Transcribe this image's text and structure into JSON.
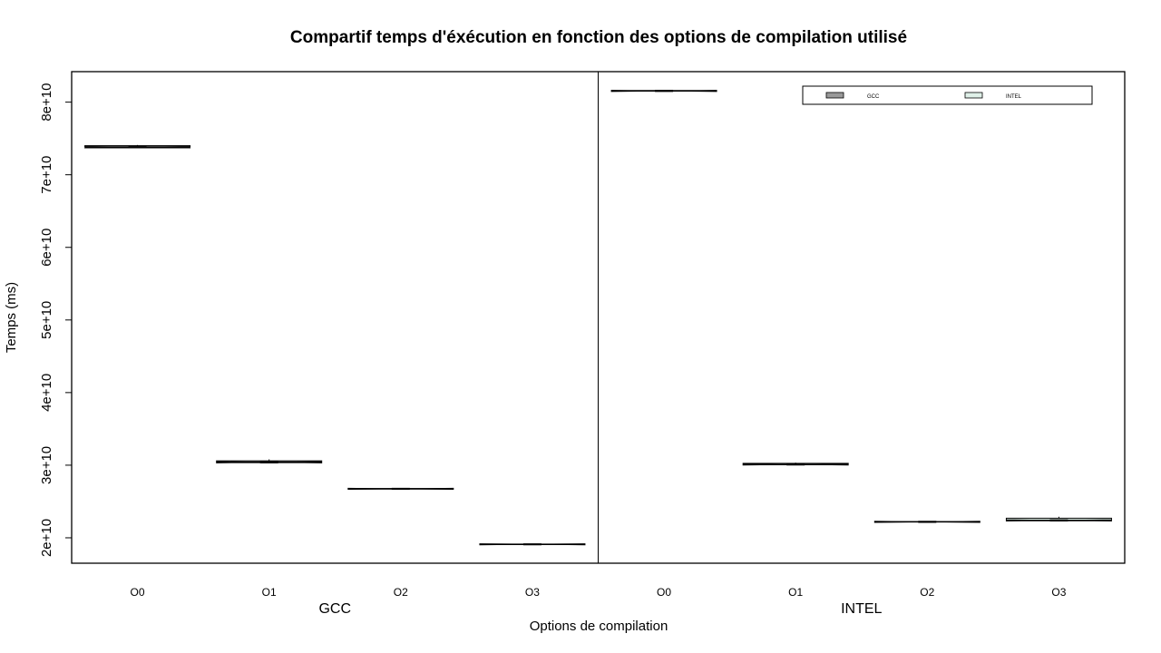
{
  "chart_data": {
    "type": "boxplot",
    "title": "Compartif temps d'éxécution en fonction des options de compilation utilisé",
    "xlabel": "Options de compilation",
    "ylabel": "Temps (ms)",
    "ylim": [
      16500000000,
      84200000000
    ],
    "y_ticks": [
      20000000000,
      30000000000,
      40000000000,
      50000000000,
      60000000000,
      70000000000,
      80000000000
    ],
    "y_tick_labels": [
      "2e+10",
      "3e+10",
      "4e+10",
      "5e+10",
      "6e+10",
      "7e+10",
      "8e+10"
    ],
    "panels": [
      {
        "name": "GCC",
        "categories": [
          "O0",
          "O1",
          "O2",
          "O3"
        ],
        "fill": "#999999",
        "boxes": [
          {
            "category": "O0",
            "min": 73650000000,
            "q1": 73700000000,
            "median": 73800000000,
            "q3": 74000000000,
            "max": 74100000000
          },
          {
            "category": "O1",
            "min": 30300000000,
            "q1": 30350000000,
            "median": 30400000000,
            "q3": 30600000000,
            "max": 30800000000
          },
          {
            "category": "O2",
            "min": 26700000000,
            "q1": 26720000000,
            "median": 26750000000,
            "q3": 26780000000,
            "max": 26800000000
          },
          {
            "category": "O3",
            "min": 19050000000,
            "q1": 19080000000,
            "median": 19100000000,
            "q3": 19120000000,
            "max": 19150000000
          }
        ]
      },
      {
        "name": "INTEL",
        "categories": [
          "O0",
          "O1",
          "O2",
          "O3"
        ],
        "fill": "#dff0e8",
        "boxes": [
          {
            "category": "O0",
            "min": 81500000000,
            "q1": 81520000000,
            "median": 81550000000,
            "q3": 81600000000,
            "max": 81650000000
          },
          {
            "category": "O1",
            "min": 30050000000,
            "q1": 30080000000,
            "median": 30100000000,
            "q3": 30250000000,
            "max": 30350000000
          },
          {
            "category": "O2",
            "min": 22150000000,
            "q1": 22180000000,
            "median": 22200000000,
            "q3": 22230000000,
            "max": 22260000000
          },
          {
            "category": "O3",
            "min": 22300000000,
            "q1": 22350000000,
            "median": 22400000000,
            "q3": 22700000000,
            "max": 22900000000
          }
        ]
      }
    ],
    "legend": {
      "position": "top-right",
      "entries": [
        {
          "name": "GCC",
          "color": "#999999"
        },
        {
          "name": "INTEL",
          "color": "#dff0e8"
        }
      ]
    },
    "grid": false
  }
}
